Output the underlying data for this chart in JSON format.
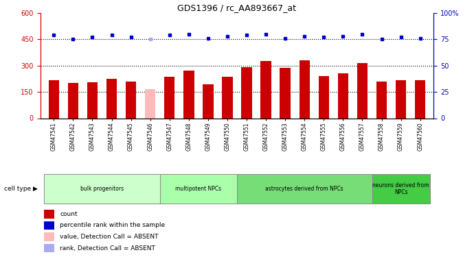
{
  "title": "GDS1396 / rc_AA893667_at",
  "samples": [
    "GSM47541",
    "GSM47542",
    "GSM47543",
    "GSM47544",
    "GSM47545",
    "GSM47546",
    "GSM47547",
    "GSM47548",
    "GSM47549",
    "GSM47550",
    "GSM47551",
    "GSM47552",
    "GSM47553",
    "GSM47554",
    "GSM47555",
    "GSM47556",
    "GSM47557",
    "GSM47558",
    "GSM47559",
    "GSM47560"
  ],
  "bar_values": [
    215,
    200,
    205,
    225,
    210,
    165,
    235,
    270,
    195,
    235,
    290,
    325,
    285,
    330,
    240,
    255,
    315,
    210,
    215,
    215
  ],
  "bar_colors": [
    "#cc0000",
    "#cc0000",
    "#cc0000",
    "#cc0000",
    "#cc0000",
    "#ffbbbb",
    "#cc0000",
    "#cc0000",
    "#cc0000",
    "#cc0000",
    "#cc0000",
    "#cc0000",
    "#cc0000",
    "#cc0000",
    "#cc0000",
    "#cc0000",
    "#cc0000",
    "#cc0000",
    "#cc0000",
    "#cc0000"
  ],
  "dot_values": [
    79,
    75,
    77,
    79,
    77,
    75,
    79,
    80,
    76,
    78,
    79,
    80,
    76,
    78,
    77,
    78,
    80,
    75,
    77,
    76
  ],
  "dot_colors": [
    "#0000cc",
    "#0000cc",
    "#0000cc",
    "#0000cc",
    "#0000cc",
    "#aaaaee",
    "#0000cc",
    "#0000cc",
    "#0000cc",
    "#0000cc",
    "#0000cc",
    "#0000cc",
    "#0000cc",
    "#0000cc",
    "#0000cc",
    "#0000cc",
    "#0000cc",
    "#0000cc",
    "#0000cc",
    "#0000cc"
  ],
  "ylim_left": [
    0,
    600
  ],
  "ylim_right": [
    0,
    100
  ],
  "yticks_left": [
    0,
    150,
    300,
    450,
    600
  ],
  "yticks_right": [
    0,
    25,
    50,
    75,
    100
  ],
  "groups": [
    {
      "label": "bulk progenitors",
      "start": 0,
      "end": 5,
      "color": "#ccffcc"
    },
    {
      "label": "multipotent NPCs",
      "start": 6,
      "end": 9,
      "color": "#aaffaa"
    },
    {
      "label": "astrocytes derived from NPCs",
      "start": 10,
      "end": 16,
      "color": "#77dd77"
    },
    {
      "label": "neurons derived from\nNPCs",
      "start": 17,
      "end": 19,
      "color": "#44cc44"
    }
  ],
  "hlines": [
    150,
    300,
    450
  ],
  "bar_width": 0.55
}
